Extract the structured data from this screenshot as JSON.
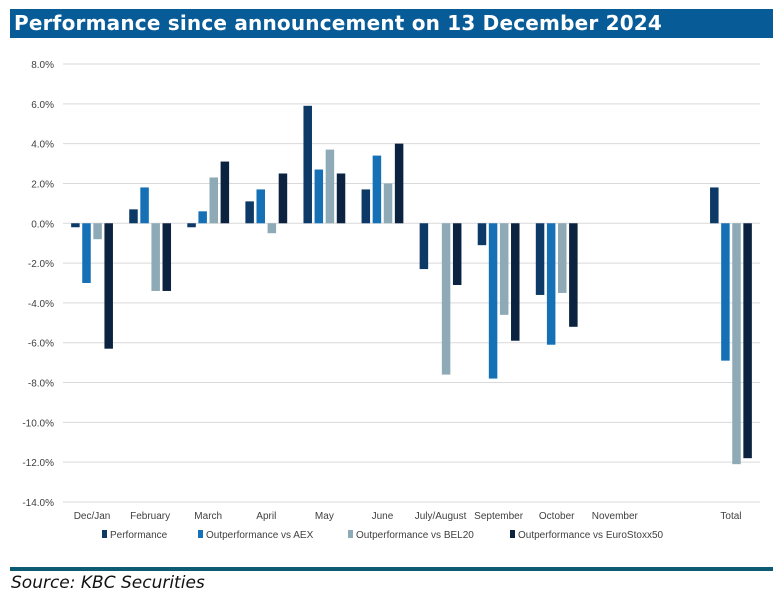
{
  "title": "Performance since announcement on 13 December 2024",
  "source": "Source: KBC Securities",
  "chart_data": {
    "type": "bar",
    "title": "Performance since announcement on 13 December 2024",
    "xlabel": "",
    "ylabel": "",
    "ylim": [
      -14,
      8
    ],
    "yticks": [
      8,
      6,
      4,
      2,
      0,
      -2,
      -4,
      -6,
      -8,
      -10,
      -12,
      -14
    ],
    "ytick_labels": [
      "8.0%",
      "6.0%",
      "4.0%",
      "2.0%",
      "0.0%",
      "-2.0%",
      "-4.0%",
      "-6.0%",
      "-8.0%",
      "-10.0%",
      "-12.0%",
      "-14.0%"
    ],
    "grid": true,
    "legend_position": "bottom",
    "categories": [
      "Dec/Jan",
      "February",
      "March",
      "April",
      "May",
      "June",
      "July/August",
      "September",
      "October",
      "November",
      "",
      "Total"
    ],
    "series": [
      {
        "name": "Performance",
        "color": "#0c3966",
        "values": [
          -0.2,
          0.7,
          -0.2,
          1.1,
          5.9,
          1.7,
          -2.3,
          -1.1,
          -3.6,
          null,
          null,
          1.8
        ]
      },
      {
        "name": "Outperformance vs AEX",
        "color": "#1570b6",
        "values": [
          -3.0,
          1.8,
          0.6,
          1.7,
          2.7,
          3.4,
          0,
          -7.8,
          -6.1,
          null,
          null,
          -6.9
        ]
      },
      {
        "name": "Outperformance vs BEL20",
        "color": "#8eaab6",
        "values": [
          -0.8,
          -3.4,
          2.3,
          -0.5,
          3.7,
          2.0,
          -7.6,
          -4.6,
          -3.5,
          null,
          null,
          -12.1
        ]
      },
      {
        "name": "Outperformance vs EuroStoxx50",
        "color": "#0b2240",
        "values": [
          -6.3,
          -3.4,
          3.1,
          2.5,
          2.5,
          4.0,
          -3.1,
          -5.9,
          -5.2,
          null,
          null,
          -11.8
        ]
      }
    ]
  }
}
